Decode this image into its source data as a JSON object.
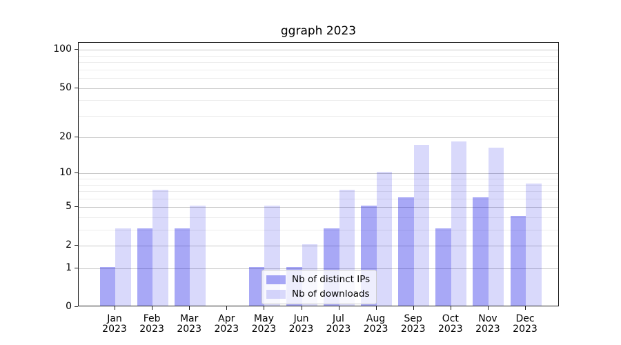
{
  "chart_data": {
    "type": "bar",
    "title": "ggraph 2023",
    "x_categories": [
      "Jan",
      "Feb",
      "Mar",
      "Apr",
      "May",
      "Jun",
      "Jul",
      "Aug",
      "Sep",
      "Oct",
      "Nov",
      "Dec"
    ],
    "x_year_label": "2023",
    "series": [
      {
        "name": "Nb of distinct IPs",
        "color": "rgba(0,0,230,0.34)",
        "values": [
          1,
          3,
          3,
          0,
          1,
          1,
          3,
          5,
          6,
          3,
          6,
          4
        ]
      },
      {
        "name": "Nb of downloads",
        "color": "rgba(0,0,230,0.15)",
        "values": [
          3,
          7,
          5,
          0,
          5,
          2,
          7,
          10,
          17,
          18,
          16,
          8
        ]
      }
    ],
    "y_scale": "log1p",
    "y_major_ticks": [
      0,
      1,
      2,
      5,
      10,
      20,
      50,
      100
    ],
    "y_minor_gridlines": [
      3,
      4,
      6,
      7,
      8,
      9,
      30,
      40,
      60,
      70,
      80,
      90
    ],
    "y_range_top": 114,
    "grid": "horizontal major and minor, no vertical",
    "legend_position": "lower center inside plot",
    "colors": {
      "spine": "#1a1a1a",
      "major_grid": "#c8c8c8",
      "minor_grid": "#ececec"
    }
  }
}
